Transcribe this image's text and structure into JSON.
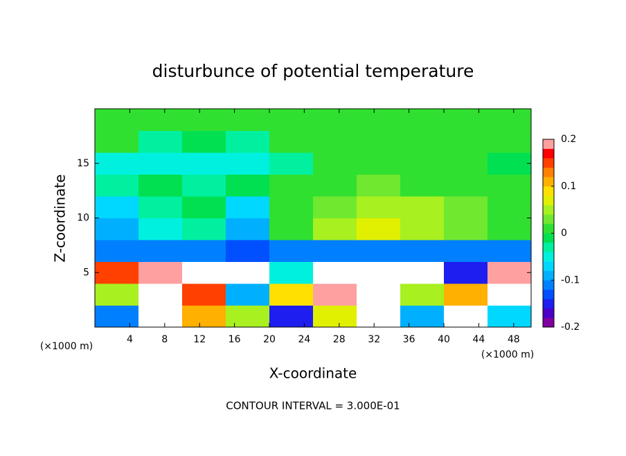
{
  "chart_data": {
    "type": "heatmap",
    "title": "disturbunce of potential temperature",
    "x_label": "X-coordinate",
    "y_label": "Z-coordinate",
    "x_unit_label": "(×1000 m)",
    "note": "CONTOUR INTERVAL = 3.000E-01",
    "xlim": [
      0,
      50
    ],
    "ylim": [
      0,
      20
    ],
    "xticks": [
      4,
      8,
      12,
      16,
      20,
      24,
      28,
      32,
      36,
      40,
      44,
      48
    ],
    "yticks": [
      5,
      10,
      15
    ],
    "x": [
      2.5,
      7.5,
      12.5,
      17.5,
      22.5,
      27.5,
      32.5,
      37.5,
      42.5,
      47.5
    ],
    "y": [
      1,
      3,
      5,
      7,
      9,
      11,
      13,
      15,
      17,
      19
    ],
    "z": [
      [
        -0.12,
        0.5,
        0.1,
        0.05,
        -0.15,
        0.06,
        0.5,
        -0.1,
        0.5,
        -0.08
      ],
      [
        0.05,
        0.5,
        0.15,
        -0.1,
        0.08,
        0.18,
        0.5,
        0.05,
        0.12,
        0.5
      ],
      [
        0.15,
        0.18,
        0.5,
        0.5,
        -0.05,
        0.5,
        0.5,
        0.5,
        -0.15,
        0.18
      ],
      [
        -0.12,
        -0.12,
        -0.12,
        -0.13,
        -0.12,
        -0.12,
        -0.12,
        -0.12,
        -0.12,
        -0.12
      ],
      [
        -0.1,
        -0.05,
        -0.03,
        -0.1,
        0.01,
        0.04,
        0.06,
        0.04,
        0.03,
        0.02
      ],
      [
        -0.08,
        -0.03,
        -0.02,
        -0.07,
        0.01,
        0.03,
        0.05,
        0.04,
        0.03,
        0.02
      ],
      [
        -0.03,
        -0.02,
        -0.03,
        -0.02,
        0.0,
        0.02,
        0.03,
        0.02,
        0.02,
        0.01
      ],
      [
        -0.04,
        -0.05,
        -0.04,
        -0.05,
        -0.03,
        0.0,
        0.02,
        0.01,
        0.0,
        -0.02
      ],
      [
        0.0,
        -0.03,
        -0.02,
        -0.03,
        0.0,
        0.01,
        0.01,
        0.01,
        0.0,
        0.0
      ],
      [
        0.01,
        0.01,
        0.01,
        0.01,
        0.01,
        0.01,
        0.0,
        0.0,
        0.01,
        0.01
      ]
    ],
    "colorbar": {
      "lim": [
        -0.2,
        0.2
      ],
      "ticks": [
        -0.2,
        -0.1,
        0,
        0.1,
        0.2
      ],
      "colors": [
        "#8000a0",
        "#4b00c8",
        "#1e1ef0",
        "#0050ff",
        "#0080ff",
        "#00b0ff",
        "#00d8ff",
        "#00f0e0",
        "#00f0a0",
        "#00e050",
        "#30e030",
        "#70e830",
        "#a8f020",
        "#e0f000",
        "#ffe000",
        "#ffb000",
        "#ff8000",
        "#ff4000",
        "#ff0000",
        "#ffa0a0"
      ],
      "out_of_range_color": "#ffffff"
    }
  }
}
